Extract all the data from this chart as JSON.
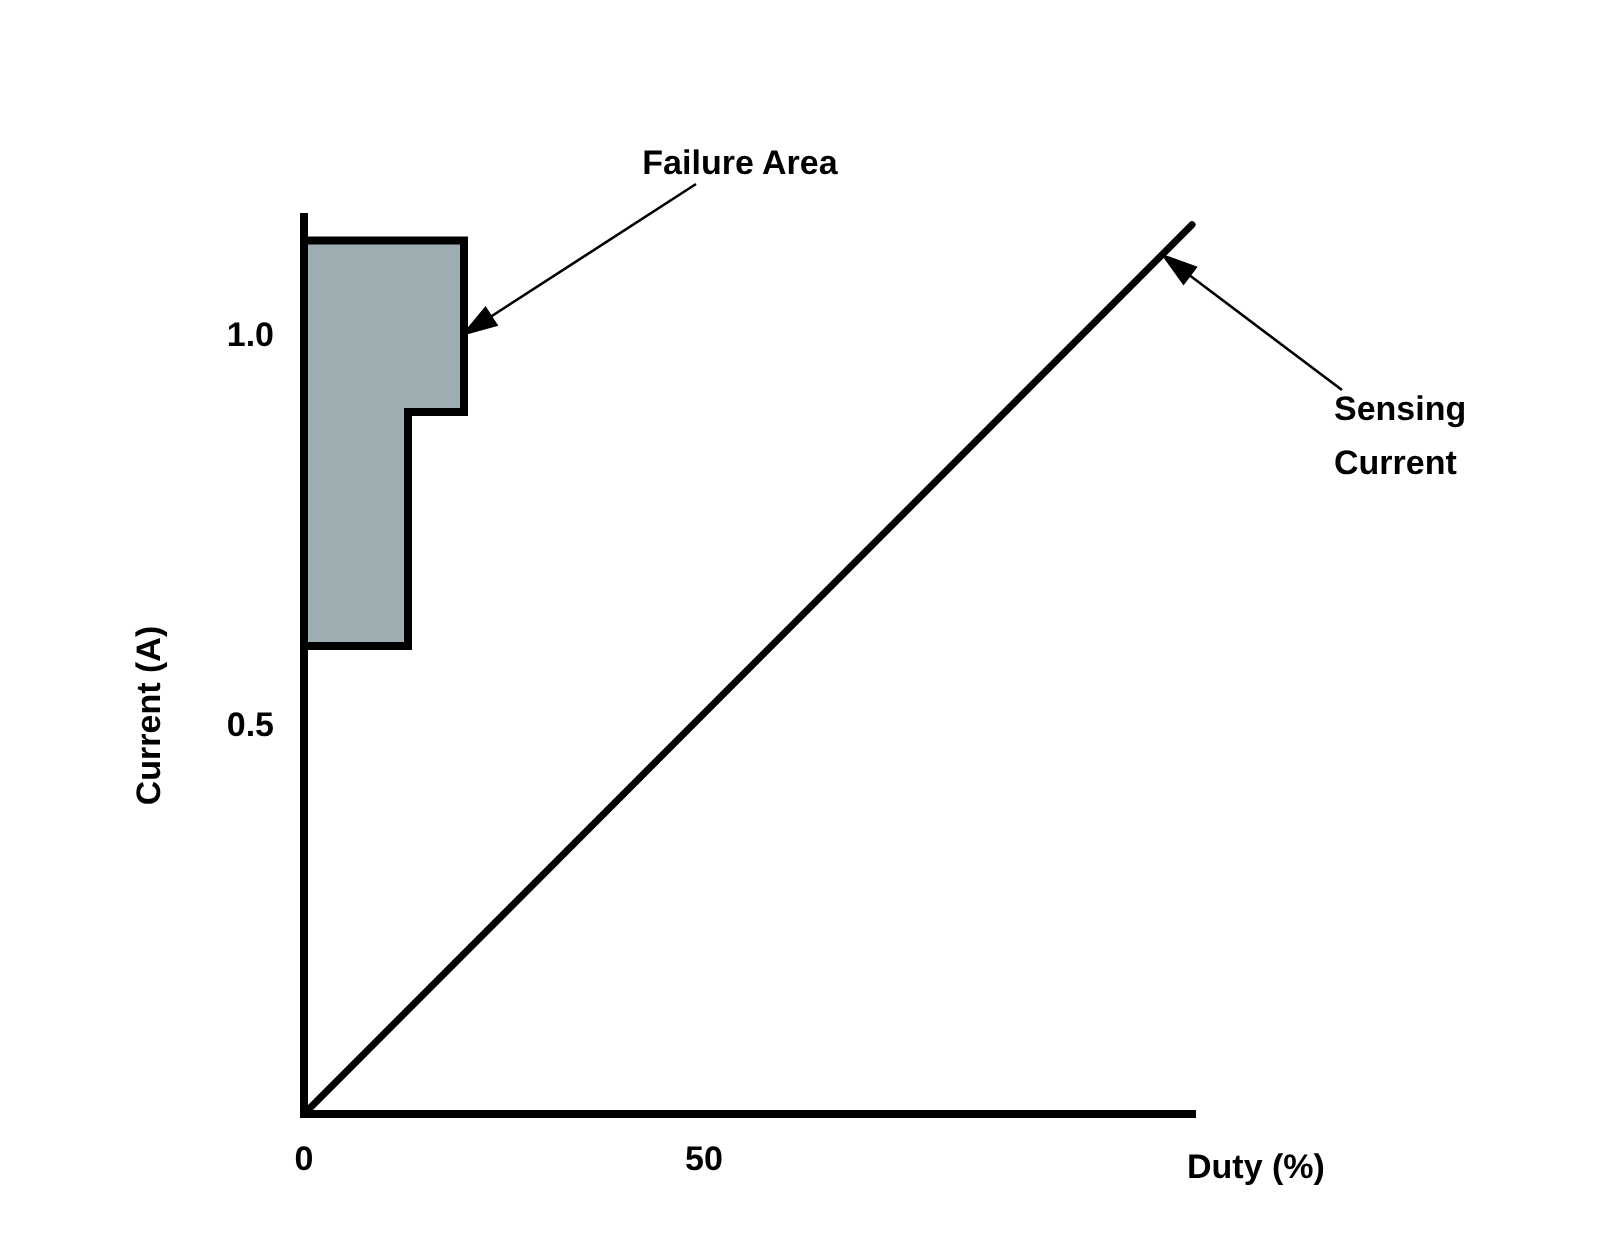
{
  "chart_data": {
    "type": "line",
    "xlabel": "Duty (%)",
    "ylabel": "Current (A)",
    "xlim": [
      0,
      111
    ],
    "ylim": [
      0,
      1.15
    ],
    "xticks": [
      0,
      50
    ],
    "yticks": [
      0.5,
      {
        "value": 1,
        "label": "1.0"
      }
    ],
    "series": [
      {
        "type": "area",
        "color": "#9eafb4",
        "x": [
          0,
          13,
          13,
          20
        ],
        "values": [
          null,
          null,
          null,
          null
        ],
        "lower": [
          0.6,
          0.6,
          0.9,
          0.9
        ],
        "upper": [
          1.12,
          1.12,
          1.12,
          1.12
        ]
      },
      {
        "color": "#000000",
        "x": [
          0,
          111
        ],
        "values": [
          0,
          1.14
        ]
      }
    ],
    "annotations": [
      {
        "text": "Failure Area",
        "x": 20,
        "y": 1.0
      },
      {
        "text": "Sensing\nCurrent",
        "x": 107.5,
        "y": 1.1
      }
    ]
  }
}
